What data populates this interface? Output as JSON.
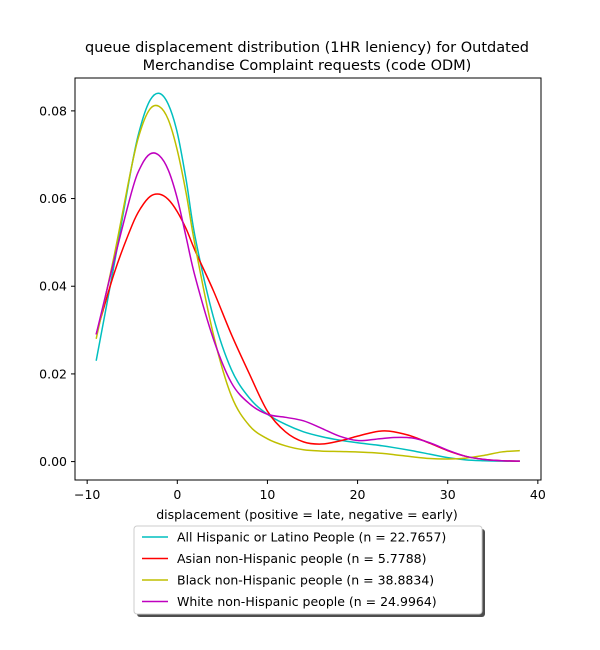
{
  "chart_data": {
    "type": "line",
    "title": "queue displacement distribution (1HR leniency) for Outdated Merchandise Complaint  requests (code ODM)",
    "title_lines": [
      "queue displacement distribution (1HR leniency) for Outdated",
      "Merchandise Complaint  requests (code ODM)"
    ],
    "xlabel": "displacement (positive = late, negative = early)",
    "ylabel": "",
    "xlim": [
      -11.35,
      40.35
    ],
    "ylim": [
      -0.0042,
      0.0875
    ],
    "xticks": [
      -10,
      0,
      10,
      20,
      30,
      40
    ],
    "xtick_labels": [
      "−10",
      "0",
      "10",
      "20",
      "30",
      "40"
    ],
    "yticks": [
      0.0,
      0.02,
      0.04,
      0.06,
      0.08
    ],
    "ytick_labels": [
      "0.00",
      "0.02",
      "0.04",
      "0.06",
      "0.08"
    ],
    "grid": false,
    "legend_position": "below-center",
    "series": [
      {
        "name": "All Hispanic or Latino People (n = 22.7657)",
        "color": "#00bfbf",
        "x": [
          -9,
          -7,
          -5,
          -4,
          -3,
          -2,
          -1,
          0,
          1,
          2,
          4,
          6,
          8,
          10,
          12,
          14,
          16,
          18,
          20,
          22,
          24,
          26,
          28,
          30,
          32,
          34,
          36,
          38
        ],
        "y": [
          0.023,
          0.045,
          0.068,
          0.077,
          0.0825,
          0.084,
          0.0815,
          0.075,
          0.064,
          0.051,
          0.033,
          0.021,
          0.0145,
          0.0108,
          0.0085,
          0.0068,
          0.0057,
          0.0049,
          0.0043,
          0.0038,
          0.0032,
          0.0025,
          0.0017,
          0.0009,
          0.0004,
          0.0002,
          0.0001,
          0.0001
        ]
      },
      {
        "name": "Asian non-Hispanic people (n = 5.7788)",
        "color": "#ff0000",
        "x": [
          -9,
          -7,
          -5,
          -4,
          -3,
          -2,
          -1,
          0,
          1,
          2,
          4,
          6,
          8,
          10,
          12,
          14,
          16,
          18,
          20,
          22,
          23,
          24,
          26,
          28,
          30,
          32,
          34,
          36,
          38
        ],
        "y": [
          0.029,
          0.043,
          0.054,
          0.058,
          0.0605,
          0.061,
          0.0598,
          0.057,
          0.053,
          0.048,
          0.039,
          0.029,
          0.02,
          0.0115,
          0.0068,
          0.0045,
          0.004,
          0.0047,
          0.0058,
          0.0068,
          0.007,
          0.0068,
          0.0058,
          0.0042,
          0.0025,
          0.0012,
          0.0005,
          0.0002,
          0.0001
        ]
      },
      {
        "name": "Black non-Hispanic people (n = 38.8834)",
        "color": "#bfbf00",
        "x": [
          -9,
          -7,
          -5,
          -4,
          -3,
          -2,
          -1,
          0,
          1,
          2,
          4,
          6,
          8,
          10,
          12,
          14,
          16,
          18,
          20,
          22,
          24,
          26,
          28,
          30,
          32,
          34,
          36,
          38
        ],
        "y": [
          0.028,
          0.047,
          0.068,
          0.076,
          0.0805,
          0.081,
          0.078,
          0.071,
          0.061,
          0.049,
          0.029,
          0.015,
          0.0082,
          0.0052,
          0.0036,
          0.0027,
          0.0024,
          0.0023,
          0.0022,
          0.002,
          0.0016,
          0.0011,
          0.0007,
          0.0006,
          0.0008,
          0.0014,
          0.0022,
          0.0025
        ]
      },
      {
        "name": "White non-Hispanic people (n = 24.9964)",
        "color": "#bf00bf",
        "x": [
          -9,
          -7,
          -5,
          -4,
          -3,
          -2,
          -1,
          0,
          1,
          2,
          4,
          6,
          8,
          10,
          12,
          14,
          16,
          18,
          20,
          22,
          24,
          26,
          28,
          30,
          32,
          34,
          36,
          38
        ],
        "y": [
          0.029,
          0.046,
          0.062,
          0.0675,
          0.0702,
          0.0698,
          0.0665,
          0.06,
          0.051,
          0.042,
          0.028,
          0.018,
          0.0132,
          0.0108,
          0.0101,
          0.0093,
          0.0076,
          0.0058,
          0.0048,
          0.0051,
          0.0055,
          0.0054,
          0.0043,
          0.0026,
          0.0012,
          0.0005,
          0.0002,
          0.0001
        ]
      }
    ]
  }
}
